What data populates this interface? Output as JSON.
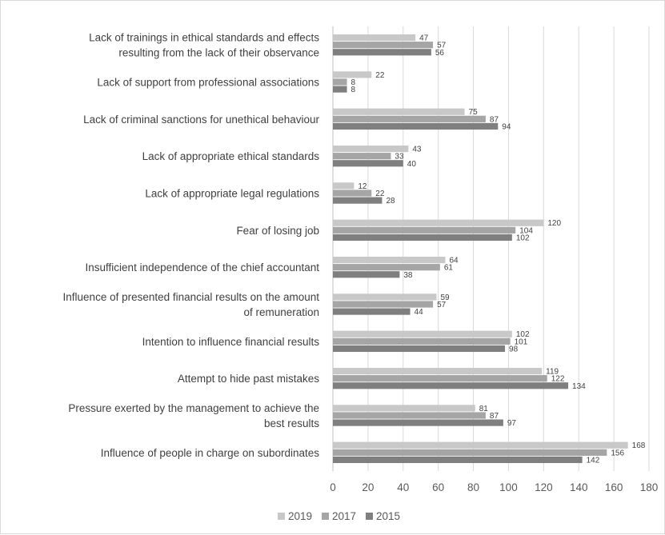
{
  "chart_data": {
    "type": "bar",
    "orientation": "horizontal",
    "categories": [
      [
        "Lack of trainings in ethical standards and effects",
        "resulting from the lack of their observance"
      ],
      [
        "Lack of support from professional associations"
      ],
      [
        "Lack of criminal sanctions for unethical behaviour"
      ],
      [
        "Lack of appropriate ethical standards"
      ],
      [
        "Lack of appropriate legal regulations"
      ],
      [
        "Fear of losing job"
      ],
      [
        "Insufficient independence of the chief accountant"
      ],
      [
        "Influence of presented financial results on the amount",
        "of remuneration"
      ],
      [
        "Intention to influence financial results"
      ],
      [
        "Attempt to hide past mistakes"
      ],
      [
        "Pressure exerted by the management to achieve the",
        "best results"
      ],
      [
        "Influence of people in charge on subordinates"
      ]
    ],
    "series": [
      {
        "name": "2019",
        "color": "#c8c8c8",
        "values": [
          47,
          22,
          75,
          43,
          12,
          120,
          64,
          59,
          102,
          119,
          81,
          168
        ]
      },
      {
        "name": "2017",
        "color": "#a5a5a5",
        "values": [
          57,
          8,
          87,
          33,
          22,
          104,
          61,
          57,
          101,
          122,
          87,
          156
        ]
      },
      {
        "name": "2015",
        "color": "#7f7f7f",
        "values": [
          56,
          8,
          94,
          40,
          28,
          102,
          38,
          44,
          98,
          134,
          97,
          142
        ]
      }
    ],
    "xlim": [
      0,
      180
    ],
    "x_ticks": [
      0,
      20,
      40,
      60,
      80,
      100,
      120,
      140,
      160,
      180
    ],
    "grid": "vertical",
    "legend": "bottom"
  }
}
